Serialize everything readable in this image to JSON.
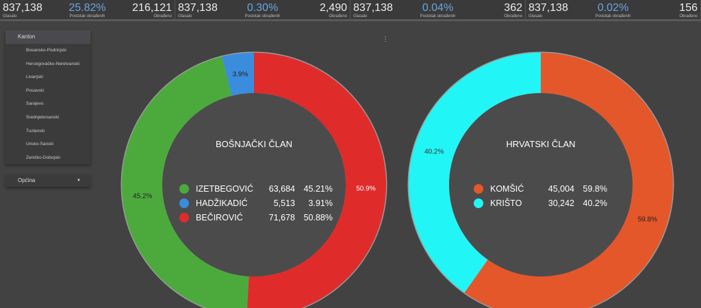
{
  "kpis": [
    {
      "glasalo": "837,138",
      "glasalo_label": "Glasalo",
      "pct": "25.82%",
      "pct_label": "Postotak obrađenih",
      "obradjeno": "216,121",
      "obradjeno_label": "Obrađeno"
    },
    {
      "glasalo": "837,138",
      "glasalo_label": "Glasalo",
      "pct": "0.30%",
      "pct_label": "Postotak obrađenih",
      "obradjeno": "2,490",
      "obradjeno_label": "Obrađeno"
    },
    {
      "glasalo": "837,138",
      "glasalo_label": "Glasalo",
      "pct": "0.04%",
      "pct_label": "Postotak obrađenih",
      "obradjeno": "362",
      "obradjeno_label": "Obrađeno"
    },
    {
      "glasalo": "837,138",
      "glasalo_label": "Glasalo",
      "pct": "0.02%",
      "pct_label": "Postotak obrađenih",
      "obradjeno": "156",
      "obradjeno_label": "Obrađeno"
    }
  ],
  "sidebar": {
    "header": "Kanton",
    "items": [
      "Bosansko-Podrinjski",
      "Hercegovačko-Neretvanski",
      "Livanjski",
      "Posavski",
      "Sarajevo",
      "Srednjebosanski",
      "Tuzlanski",
      "Unsko-Sanski",
      "Zeničko-Dobojski"
    ],
    "opcina": "Općina"
  },
  "chart_data": [
    {
      "type": "pie",
      "title": "BOŠNJAČKI ČLAN",
      "slices": [
        {
          "name": "BEČIROVIĆ",
          "votes": "71,678",
          "pct": "50.88%",
          "value": 50.88,
          "label": "50.9%",
          "color": "#e02b2b"
        },
        {
          "name": "IZETBEGOVIĆ",
          "votes": "63,684",
          "pct": "45.21%",
          "value": 45.21,
          "label": "45.2%",
          "color": "#4caa3d"
        },
        {
          "name": "HADŽIKADIĆ",
          "votes": "5,513",
          "pct": "3.91%",
          "value": 3.91,
          "label": "3.9%",
          "color": "#3a8ddc"
        }
      ],
      "legend_order": [
        1,
        2,
        0
      ]
    },
    {
      "type": "pie",
      "title": "HRVATSKI ČLAN",
      "slices": [
        {
          "name": "KOMŠIĆ",
          "votes": "45,004",
          "pct": "59.8%",
          "value": 59.8,
          "label": "59.8%",
          "color": "#e4572a"
        },
        {
          "name": "KRIŠTO",
          "votes": "30,242",
          "pct": "40.2%",
          "value": 40.2,
          "label": "40.2%",
          "color": "#22f5f5"
        }
      ],
      "legend_order": [
        0,
        1
      ]
    }
  ]
}
